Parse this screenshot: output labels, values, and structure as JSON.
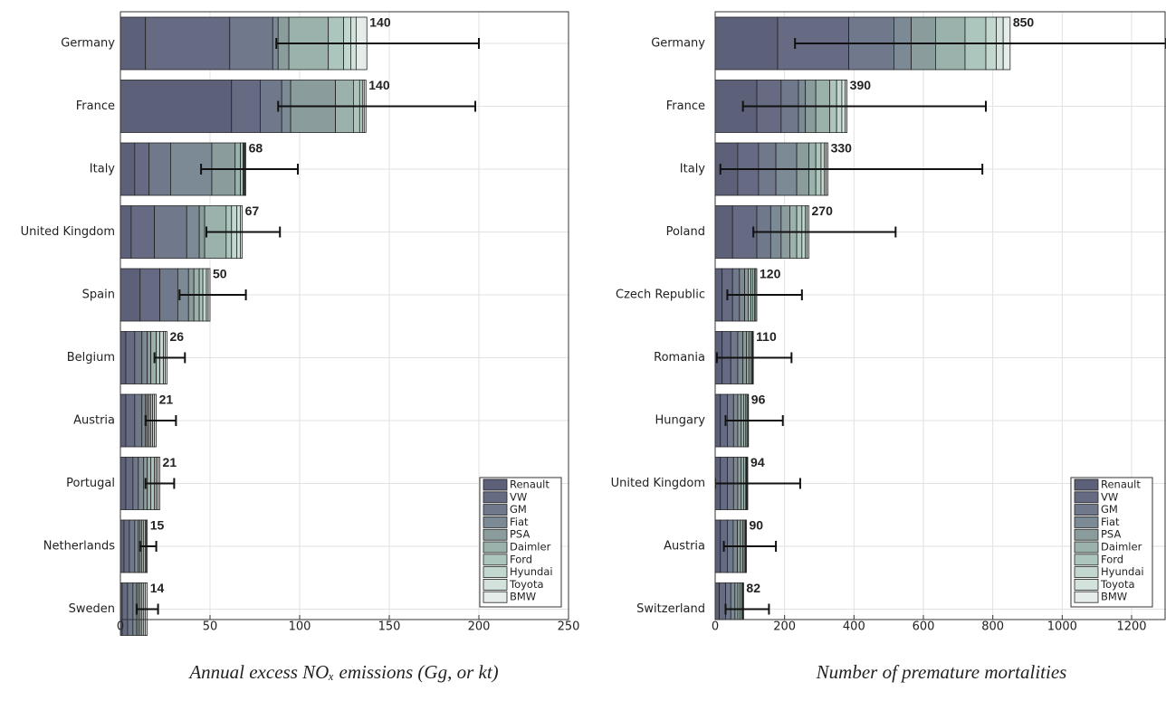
{
  "chart_data": [
    {
      "type": "bar",
      "orientation": "horizontal",
      "xlabel": "Annual excess NOₓ emissions (Gg, or kt)",
      "categories": [
        "Germany",
        "France",
        "Italy",
        "United Kingdom",
        "Spain",
        "Belgium",
        "Austria",
        "Portugal",
        "Netherlands",
        "Sweden"
      ],
      "series": [
        {
          "name": "Renault",
          "color": "#5d6079",
          "values": [
            14,
            62,
            8,
            6,
            11,
            3,
            3,
            3,
            2,
            1
          ]
        },
        {
          "name": "VW",
          "color": "#666b83",
          "values": [
            47,
            16,
            8,
            13,
            11,
            5,
            5,
            4,
            3,
            3
          ]
        },
        {
          "name": "GM",
          "color": "#70798b",
          "values": [
            24,
            12,
            12,
            18,
            10,
            4,
            4,
            3,
            3,
            3
          ]
        },
        {
          "name": "Fiat",
          "color": "#7b8a95",
          "values": [
            3,
            5,
            23,
            7,
            6,
            3,
            2,
            3,
            2,
            2
          ]
        },
        {
          "name": "PSA",
          "color": "#8a9c9c",
          "values": [
            6,
            25,
            13,
            3,
            3,
            2,
            1,
            2,
            1,
            1
          ]
        },
        {
          "name": "Daimler",
          "color": "#9bb1ab",
          "values": [
            22,
            10,
            3,
            12,
            3,
            3,
            1,
            2,
            1,
            1
          ]
        },
        {
          "name": "Ford",
          "color": "#adc6bd",
          "values": [
            8.5,
            3.5,
            1.5,
            3,
            2,
            2,
            1,
            2,
            1,
            1
          ]
        },
        {
          "name": "Hyundai",
          "color": "#c2d7ce",
          "values": [
            4,
            1.5,
            0.5,
            3,
            2,
            2,
            1,
            1,
            1,
            1
          ]
        },
        {
          "name": "Toyota",
          "color": "#d4e2dc",
          "values": [
            3,
            1,
            0.5,
            2,
            1,
            1,
            1,
            1,
            0.5,
            1
          ]
        },
        {
          "name": "BMW",
          "color": "#e5ecea",
          "values": [
            6,
            1,
            0.5,
            1,
            1,
            1,
            1,
            1,
            0.5,
            1
          ]
        }
      ],
      "totals": [
        140,
        140,
        68,
        67,
        50,
        26,
        21,
        21,
        15,
        14
      ],
      "err_low": [
        87,
        88,
        45,
        48,
        33,
        19,
        14,
        14,
        11,
        9
      ],
      "err_high": [
        200,
        198,
        99,
        89,
        70,
        36,
        31,
        30,
        20,
        21
      ],
      "xlim": [
        0,
        250
      ],
      "xticks": [
        0,
        50,
        100,
        150,
        200,
        250
      ],
      "grid": true,
      "legend": "lower right"
    },
    {
      "type": "bar",
      "orientation": "horizontal",
      "xlabel": "Number of premature mortalities",
      "categories": [
        "Germany",
        "France",
        "Italy",
        "Poland",
        "Czech Republic",
        "Romania",
        "Hungary",
        "United Kingdom",
        "Austria",
        "Switzerland"
      ],
      "series": [
        {
          "name": "Renault",
          "color": "#5d6079",
          "values": [
            180,
            120,
            65,
            50,
            20,
            20,
            15,
            15,
            15,
            12
          ]
        },
        {
          "name": "VW",
          "color": "#666b83",
          "values": [
            205,
            70,
            60,
            70,
            30,
            25,
            20,
            20,
            20,
            18
          ]
        },
        {
          "name": "GM",
          "color": "#70798b",
          "values": [
            130,
            50,
            50,
            40,
            20,
            20,
            18,
            18,
            17,
            15
          ]
        },
        {
          "name": "Fiat",
          "color": "#7b8a95",
          "values": [
            50,
            20,
            60,
            30,
            15,
            15,
            12,
            12,
            12,
            12
          ]
        },
        {
          "name": "PSA",
          "color": "#8a9c9c",
          "values": [
            70,
            30,
            35,
            25,
            10,
            10,
            10,
            10,
            9,
            8
          ]
        },
        {
          "name": "Daimler",
          "color": "#9bb1ab",
          "values": [
            85,
            40,
            20,
            20,
            8,
            7,
            7,
            7,
            7,
            6
          ]
        },
        {
          "name": "Ford",
          "color": "#adc6bd",
          "values": [
            60,
            20,
            15,
            15,
            6,
            5,
            5,
            5,
            4,
            5
          ]
        },
        {
          "name": "Hyundai",
          "color": "#c2d7ce",
          "values": [
            30,
            15,
            10,
            10,
            5,
            4,
            4,
            3,
            3,
            3
          ]
        },
        {
          "name": "Toyota",
          "color": "#d4e2dc",
          "values": [
            20,
            10,
            5,
            5,
            3,
            2,
            3,
            2,
            2,
            2
          ]
        },
        {
          "name": "BMW",
          "color": "#e5ecea",
          "values": [
            20,
            5,
            5,
            5,
            3,
            2,
            2,
            2,
            1,
            1
          ]
        }
      ],
      "totals": [
        850,
        390,
        330,
        270,
        120,
        110,
        96,
        94,
        90,
        82
      ],
      "err_low": [
        230,
        80,
        15,
        110,
        35,
        5,
        30,
        0,
        25,
        30
      ],
      "err_high": [
        1300,
        780,
        770,
        520,
        250,
        220,
        195,
        245,
        175,
        155
      ],
      "xlim": [
        0,
        1300
      ],
      "xticks": [
        0,
        200,
        400,
        600,
        800,
        1000,
        1200
      ],
      "grid": true,
      "legend": "lower right"
    }
  ]
}
